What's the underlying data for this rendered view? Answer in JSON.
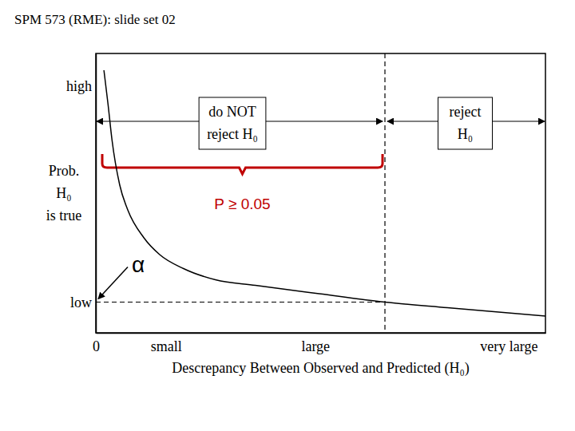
{
  "chart_data": {
    "type": "line",
    "title": "SPM 573 (RME): slide set 02",
    "x_label": "Descrepancy Between Observed and Predicted (H₀)",
    "y_label": [
      "Prob.",
      "H₀",
      "is true"
    ],
    "x": [
      0.18,
      0.27,
      0.36,
      0.53,
      0.71,
      1.07,
      1.42,
      1.95,
      2.66,
      3.55,
      4.97,
      6.43,
      7.82,
      10
    ],
    "values": [
      0.94,
      0.82,
      0.69,
      0.53,
      0.44,
      0.34,
      0.28,
      0.23,
      0.19,
      0.17,
      0.14,
      0.11,
      0.09,
      0.06
    ],
    "color": "#000000",
    "xlim": [
      0,
      10
    ],
    "ylim": [
      0,
      1
    ],
    "xticks": [
      0,
      {
        "value": 1.56,
        "label": "small"
      },
      {
        "value": 4.88,
        "label": "large"
      },
      {
        "value": 9.18,
        "label": "very large"
      }
    ],
    "yticks": [
      {
        "value": 0.11,
        "label": "low"
      },
      {
        "value": 0.883,
        "label": "high"
      }
    ],
    "grid": false,
    "threshold": 6.43,
    "below_label": [
      "do NOT",
      "reject H₀"
    ],
    "above_label": [
      "reject",
      "H₀"
    ],
    "bracket": {
      "label": "P ≥ 0.05",
      "color": "#c00000"
    },
    "alpha": {
      "label": "α",
      "value": 0.11
    }
  }
}
